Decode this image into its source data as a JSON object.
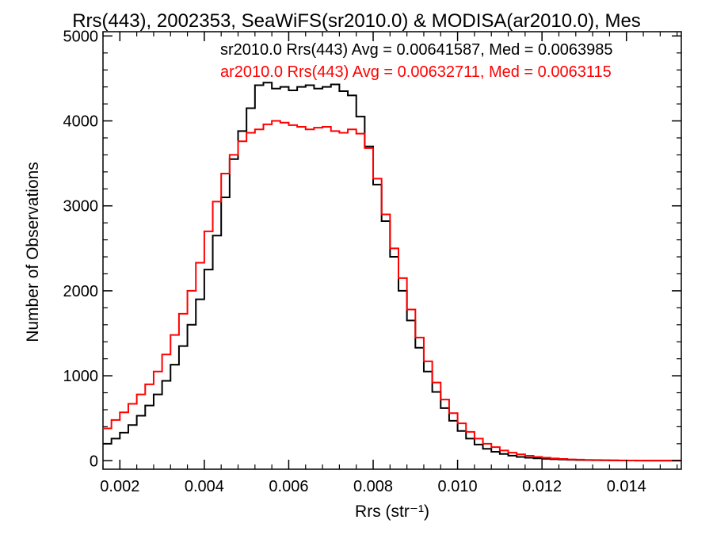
{
  "chart_data": {
    "type": "line",
    "title": "Rrs(443), 2002353, SeaWiFS(sr2010.0) & MODISA(ar2010.0), Mes",
    "xlabel": "Rrs (str⁻¹)",
    "ylabel": "Number of Observations",
    "xlim": [
      0.0016,
      0.0153
    ],
    "ylim": [
      -100,
      5050
    ],
    "xticks": [
      0.002,
      0.004,
      0.006,
      0.008,
      0.01,
      0.012,
      0.014
    ],
    "xtick_labels": [
      "0.002",
      "0.004",
      "0.006",
      "0.008",
      "0.010",
      "0.012",
      "0.014"
    ],
    "yticks": [
      0,
      1000,
      2000,
      3000,
      4000,
      5000
    ],
    "ytick_labels": [
      "0",
      "1000",
      "2000",
      "3000",
      "4000",
      "5000"
    ],
    "grid": false,
    "legend_position": "top-right",
    "series": [
      {
        "name": "sr2010.0",
        "legend_text": "sr2010.0 Rrs(443) Avg = 0.00641587, Med = 0.0063985",
        "color": "#000000",
        "x": [
          0.0016,
          0.0018,
          0.002,
          0.0022,
          0.0024,
          0.0026,
          0.0028,
          0.003,
          0.0032,
          0.0034,
          0.0036,
          0.0038,
          0.004,
          0.0042,
          0.0044,
          0.0046,
          0.0048,
          0.005,
          0.0052,
          0.0054,
          0.0056,
          0.0058,
          0.006,
          0.0062,
          0.0064,
          0.0066,
          0.0068,
          0.007,
          0.0072,
          0.0074,
          0.0076,
          0.0078,
          0.008,
          0.0082,
          0.0084,
          0.0086,
          0.0088,
          0.009,
          0.0092,
          0.0094,
          0.0096,
          0.0098,
          0.01,
          0.0102,
          0.0104,
          0.0106,
          0.0108,
          0.011,
          0.0112,
          0.0114,
          0.0116,
          0.0118,
          0.012,
          0.0122,
          0.0124,
          0.0126,
          0.0128,
          0.013,
          0.0132,
          0.0134,
          0.0136,
          0.0138,
          0.014,
          0.0142,
          0.0144,
          0.0146,
          0.0148,
          0.015,
          0.0152
        ],
        "y": [
          200,
          260,
          330,
          420,
          530,
          650,
          780,
          940,
          1130,
          1350,
          1600,
          1900,
          2250,
          2650,
          3100,
          3550,
          3880,
          4150,
          4420,
          4450,
          4380,
          4400,
          4360,
          4400,
          4420,
          4380,
          4400,
          4430,
          4350,
          4300,
          4050,
          3700,
          3250,
          2820,
          2400,
          2000,
          1650,
          1330,
          1050,
          810,
          620,
          470,
          350,
          260,
          190,
          140,
          105,
          80,
          60,
          45,
          35,
          28,
          22,
          18,
          14,
          11,
          9,
          7,
          6,
          5,
          4,
          3,
          3,
          2,
          2,
          1,
          1,
          1,
          1
        ]
      },
      {
        "name": "ar2010.0",
        "legend_text": "ar2010.0 Rrs(443) Avg = 0.00632711, Med = 0.0063115",
        "color": "#ff0000",
        "x": [
          0.0016,
          0.0018,
          0.002,
          0.0022,
          0.0024,
          0.0026,
          0.0028,
          0.003,
          0.0032,
          0.0034,
          0.0036,
          0.0038,
          0.004,
          0.0042,
          0.0044,
          0.0046,
          0.0048,
          0.005,
          0.0052,
          0.0054,
          0.0056,
          0.0058,
          0.006,
          0.0062,
          0.0064,
          0.0066,
          0.0068,
          0.007,
          0.0072,
          0.0074,
          0.0076,
          0.0078,
          0.008,
          0.0082,
          0.0084,
          0.0086,
          0.0088,
          0.009,
          0.0092,
          0.0094,
          0.0096,
          0.0098,
          0.01,
          0.0102,
          0.0104,
          0.0106,
          0.0108,
          0.011,
          0.0112,
          0.0114,
          0.0116,
          0.0118,
          0.012,
          0.0122,
          0.0124,
          0.0126,
          0.0128,
          0.013,
          0.0132,
          0.0134,
          0.0136,
          0.0138,
          0.014,
          0.0142,
          0.0144,
          0.0146,
          0.0148,
          0.015,
          0.0152
        ],
        "y": [
          380,
          480,
          570,
          670,
          780,
          900,
          1050,
          1250,
          1480,
          1730,
          2000,
          2330,
          2700,
          3050,
          3380,
          3600,
          3760,
          3860,
          3900,
          3960,
          4000,
          3980,
          3950,
          3930,
          3900,
          3920,
          3930,
          3880,
          3860,
          3900,
          3850,
          3680,
          3320,
          2900,
          2500,
          2150,
          1780,
          1450,
          1170,
          920,
          720,
          560,
          440,
          340,
          260,
          200,
          160,
          120,
          95,
          75,
          58,
          45,
          35,
          27,
          21,
          16,
          13,
          10,
          8,
          6,
          5,
          4,
          3,
          3,
          2,
          2,
          1,
          1,
          1
        ]
      }
    ]
  }
}
